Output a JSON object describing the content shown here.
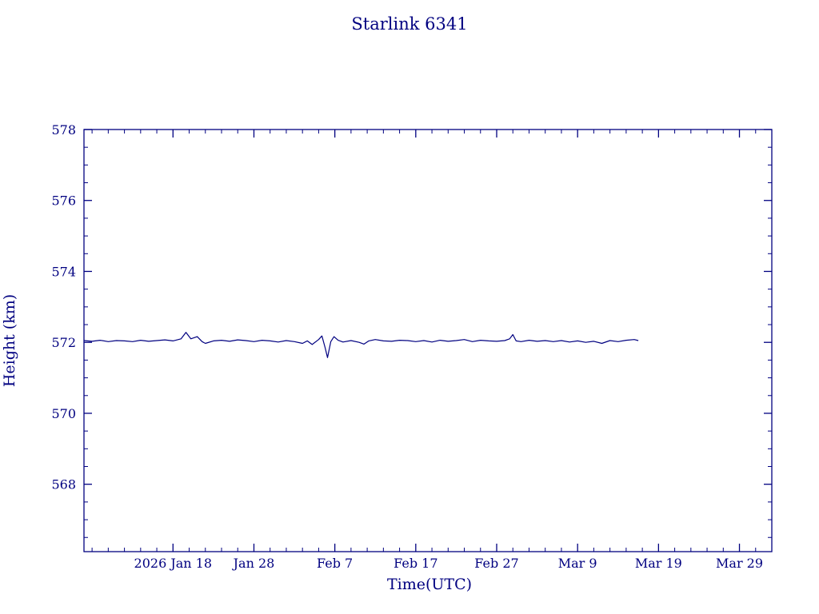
{
  "page": {
    "background": "#ffffff",
    "accent_color": "#000080"
  },
  "chart_data": {
    "type": "line",
    "title": "Starlink 6341",
    "xlabel": "Time(UTC)",
    "ylabel": "Height (km)",
    "line_color": "#000080",
    "axis_color": "#000080",
    "grid": false,
    "legend": "none",
    "x_unit": "day_of_year_2026",
    "xlim": [
      7,
      92
    ],
    "ylim": [
      566.1,
      578
    ],
    "xticks": [
      {
        "x": 18,
        "label": "2026 Jan 18"
      },
      {
        "x": 28,
        "label": "Jan 28"
      },
      {
        "x": 38,
        "label": "Feb 7"
      },
      {
        "x": 48,
        "label": "Feb 17"
      },
      {
        "x": 58,
        "label": "Feb 27"
      },
      {
        "x": 68,
        "label": "Mar 9"
      },
      {
        "x": 78,
        "label": "Mar 19"
      },
      {
        "x": 88,
        "label": "Mar 29"
      }
    ],
    "yticks": [
      {
        "y": 568,
        "label": "568"
      },
      {
        "y": 570,
        "label": "570"
      },
      {
        "y": 572,
        "label": "572"
      },
      {
        "y": 574,
        "label": "574"
      },
      {
        "y": 576,
        "label": "576"
      },
      {
        "y": 578,
        "label": "578"
      }
    ],
    "minor_x_step": 2,
    "minor_y_step": 0.5,
    "series": [
      {
        "name": "height_km",
        "points": [
          [
            7,
            572.05
          ],
          [
            8,
            572.03
          ],
          [
            9,
            572.06
          ],
          [
            10,
            572.02
          ],
          [
            11,
            572.05
          ],
          [
            12,
            572.04
          ],
          [
            13,
            572.02
          ],
          [
            14,
            572.06
          ],
          [
            15,
            572.03
          ],
          [
            16,
            572.05
          ],
          [
            17,
            572.07
          ],
          [
            18,
            572.04
          ],
          [
            19,
            572.1
          ],
          [
            19.6,
            572.28
          ],
          [
            20.2,
            572.1
          ],
          [
            21,
            572.16
          ],
          [
            21.6,
            572.02
          ],
          [
            22,
            571.97
          ],
          [
            23,
            572.04
          ],
          [
            24,
            572.06
          ],
          [
            25,
            572.03
          ],
          [
            26,
            572.07
          ],
          [
            27,
            572.05
          ],
          [
            28,
            572.02
          ],
          [
            29,
            572.06
          ],
          [
            30,
            572.04
          ],
          [
            31,
            572.01
          ],
          [
            32,
            572.05
          ],
          [
            33,
            572.02
          ],
          [
            34,
            571.97
          ],
          [
            34.6,
            572.04
          ],
          [
            35.2,
            571.94
          ],
          [
            36,
            572.08
          ],
          [
            36.4,
            572.18
          ],
          [
            36.8,
            571.85
          ],
          [
            37.1,
            571.57
          ],
          [
            37.5,
            572.02
          ],
          [
            37.9,
            572.16
          ],
          [
            38.4,
            572.06
          ],
          [
            39,
            572.01
          ],
          [
            40,
            572.05
          ],
          [
            41,
            572.0
          ],
          [
            41.6,
            571.95
          ],
          [
            42.2,
            572.04
          ],
          [
            43,
            572.08
          ],
          [
            44,
            572.04
          ],
          [
            45,
            572.03
          ],
          [
            46,
            572.06
          ],
          [
            47,
            572.05
          ],
          [
            48,
            572.02
          ],
          [
            49,
            572.05
          ],
          [
            50,
            572.01
          ],
          [
            51,
            572.06
          ],
          [
            52,
            572.03
          ],
          [
            53,
            572.05
          ],
          [
            54,
            572.08
          ],
          [
            55,
            572.02
          ],
          [
            56,
            572.06
          ],
          [
            57,
            572.04
          ],
          [
            58,
            572.03
          ],
          [
            59,
            572.05
          ],
          [
            59.6,
            572.1
          ],
          [
            60,
            572.22
          ],
          [
            60.4,
            572.04
          ],
          [
            61,
            572.02
          ],
          [
            62,
            572.06
          ],
          [
            63,
            572.03
          ],
          [
            64,
            572.05
          ],
          [
            65,
            572.02
          ],
          [
            66,
            572.05
          ],
          [
            67,
            572.01
          ],
          [
            68,
            572.04
          ],
          [
            69,
            572.0
          ],
          [
            70,
            572.03
          ],
          [
            71,
            571.97
          ],
          [
            72,
            572.05
          ],
          [
            73,
            572.02
          ],
          [
            74,
            572.06
          ],
          [
            75,
            572.08
          ],
          [
            75.5,
            572.05
          ]
        ]
      }
    ]
  }
}
